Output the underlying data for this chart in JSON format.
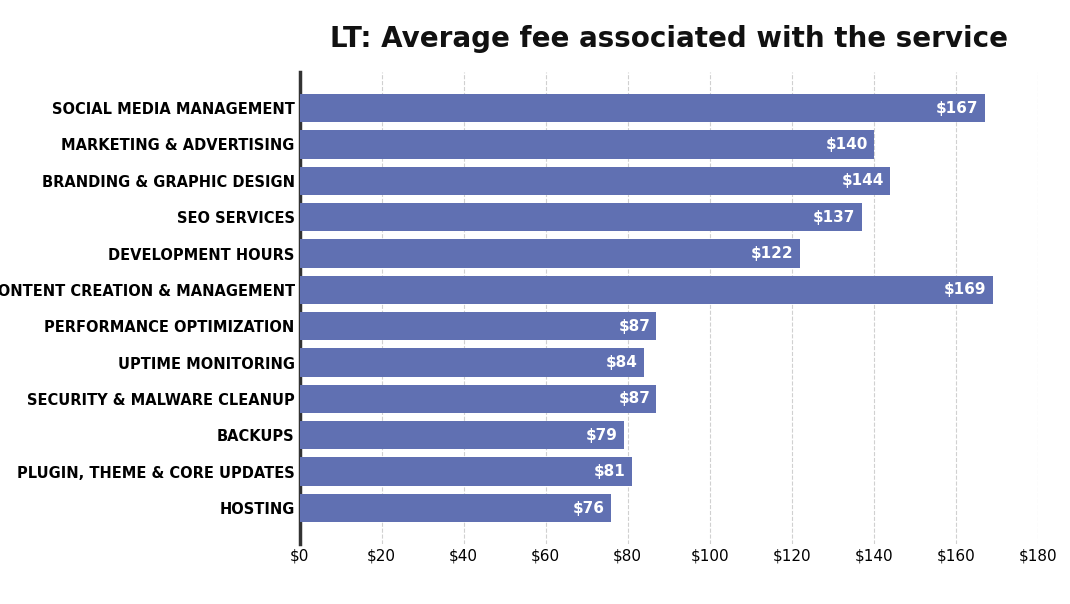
{
  "title": "LT: Average fee associated with the service",
  "categories": [
    "SOCIAL MEDIA MANAGEMENT",
    "MARKETING & ADVERTISING",
    "BRANDING & GRAPHIC DESIGN",
    "SEO SERVICES",
    "DEVELOPMENT HOURS",
    "CONTENT CREATION & MANAGEMENT",
    "PERFORMANCE OPTIMIZATION",
    "UPTIME MONITORING",
    "SECURITY & MALWARE CLEANUP",
    "BACKUPS",
    "PLUGIN, THEME & CORE UPDATES",
    "HOSTING"
  ],
  "values": [
    167,
    140,
    144,
    137,
    122,
    169,
    87,
    84,
    87,
    79,
    81,
    76
  ],
  "bar_color": "#6070b2",
  "label_color": "#ffffff",
  "background_color": "#ffffff",
  "xlim": [
    0,
    180
  ],
  "xticks": [
    0,
    20,
    40,
    60,
    80,
    100,
    120,
    140,
    160,
    180
  ],
  "xtick_labels": [
    "$0",
    "$20",
    "$40",
    "$60",
    "$80",
    "$100",
    "$120",
    "$140",
    "$160",
    "$180"
  ],
  "title_fontsize": 20,
  "tick_label_fontsize": 11,
  "bar_label_fontsize": 11,
  "category_fontsize": 10.5,
  "grid_color": "#d0d0d0",
  "left_spine_color": "#333333",
  "bar_height": 0.78
}
